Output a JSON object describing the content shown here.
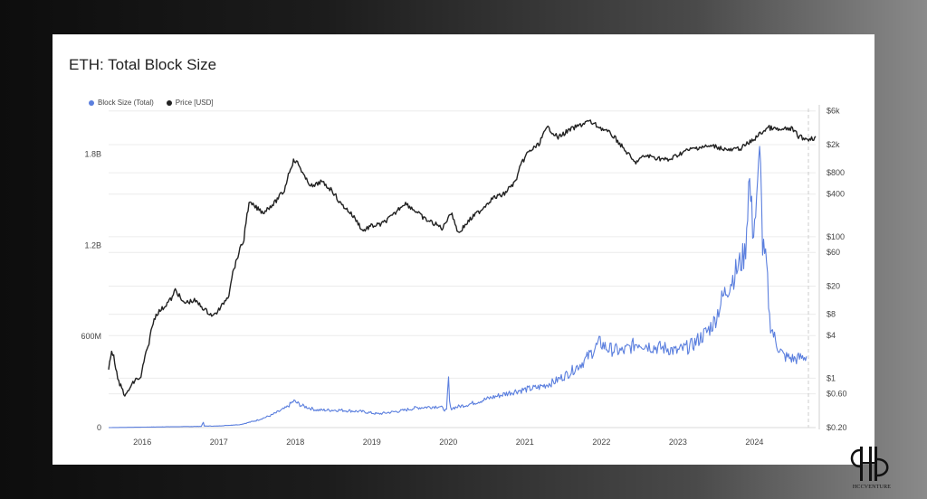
{
  "chart_data": {
    "type": "line",
    "title": "ETH: Total Block Size",
    "legend": {
      "placement": "top-left"
    },
    "grid": true,
    "x_ticks": [
      "2016",
      "2017",
      "2018",
      "2019",
      "2020",
      "2021",
      "2022",
      "2023",
      "2024"
    ],
    "x_range": [
      2015.58,
      2024.82
    ],
    "y_left": {
      "range": [
        0,
        2100000000
      ],
      "ticks": [
        {
          "value": 0,
          "label": "0"
        },
        {
          "value": 600000000,
          "label": "600M"
        },
        {
          "value": 1200000000,
          "label": "1.2B"
        },
        {
          "value": 1800000000,
          "label": "1.8B"
        }
      ]
    },
    "y_right": {
      "scale": "log",
      "range": [
        0.2,
        6500
      ],
      "ticks": [
        {
          "value": 6000,
          "label": "$6k"
        },
        {
          "value": 2000,
          "label": "$2k"
        },
        {
          "value": 800,
          "label": "$800"
        },
        {
          "value": 400,
          "label": "$400"
        },
        {
          "value": 100,
          "label": "$100"
        },
        {
          "value": 60,
          "label": "$60"
        },
        {
          "value": 20,
          "label": "$20"
        },
        {
          "value": 8,
          "label": "$8"
        },
        {
          "value": 4,
          "label": "$4"
        },
        {
          "value": 1,
          "label": "$1"
        },
        {
          "value": 0.6,
          "label": "$0.60"
        },
        {
          "value": 0.2,
          "label": "$0.20"
        }
      ]
    },
    "series": [
      {
        "name": "Block Size (Total)",
        "color": "#5b7fde",
        "axis": "left",
        "points": [
          [
            2015.58,
            0
          ],
          [
            2015.9,
            2000000
          ],
          [
            2016.2,
            4000000
          ],
          [
            2016.5,
            6000000
          ],
          [
            2016.8,
            8000000
          ],
          [
            2016.81,
            45000000
          ],
          [
            2016.83,
            10000000
          ],
          [
            2017.0,
            10000000
          ],
          [
            2017.3,
            20000000
          ],
          [
            2017.5,
            45000000
          ],
          [
            2017.7,
            80000000
          ],
          [
            2017.9,
            130000000
          ],
          [
            2018.0,
            175000000
          ],
          [
            2018.1,
            145000000
          ],
          [
            2018.3,
            115000000
          ],
          [
            2018.6,
            115000000
          ],
          [
            2018.9,
            105000000
          ],
          [
            2019.1,
            90000000
          ],
          [
            2019.4,
            110000000
          ],
          [
            2019.6,
            130000000
          ],
          [
            2019.9,
            140000000
          ],
          [
            2020.0,
            110000000
          ],
          [
            2020.02,
            350000000
          ],
          [
            2020.04,
            125000000
          ],
          [
            2020.3,
            155000000
          ],
          [
            2020.6,
            200000000
          ],
          [
            2020.9,
            240000000
          ],
          [
            2021.2,
            265000000
          ],
          [
            2021.4,
            300000000
          ],
          [
            2021.6,
            360000000
          ],
          [
            2021.8,
            440000000
          ],
          [
            2022.0,
            560000000
          ],
          [
            2022.1,
            520000000
          ],
          [
            2022.3,
            500000000
          ],
          [
            2022.5,
            560000000
          ],
          [
            2022.7,
            530000000
          ],
          [
            2022.9,
            520000000
          ],
          [
            2023.0,
            500000000
          ],
          [
            2023.2,
            540000000
          ],
          [
            2023.4,
            630000000
          ],
          [
            2023.5,
            700000000
          ],
          [
            2023.6,
            850000000
          ],
          [
            2023.8,
            1050000000
          ],
          [
            2023.9,
            1150000000
          ],
          [
            2023.95,
            1650000000
          ],
          [
            2024.0,
            1300000000
          ],
          [
            2024.05,
            1450000000
          ],
          [
            2024.1,
            1900000000
          ],
          [
            2024.12,
            1200000000
          ],
          [
            2024.18,
            1050000000
          ],
          [
            2024.22,
            700000000
          ],
          [
            2024.3,
            560000000
          ],
          [
            2024.4,
            470000000
          ],
          [
            2024.55,
            450000000
          ],
          [
            2024.7,
            470000000
          ]
        ]
      },
      {
        "name": "Price [USD]",
        "color": "#222222",
        "axis": "right",
        "points": [
          [
            2015.58,
            1.3
          ],
          [
            2015.62,
            2.5
          ],
          [
            2015.7,
            0.9
          ],
          [
            2015.8,
            0.55
          ],
          [
            2015.95,
            1.0
          ],
          [
            2016.0,
            0.95
          ],
          [
            2016.1,
            2.8
          ],
          [
            2016.2,
            8.0
          ],
          [
            2016.3,
            10.0
          ],
          [
            2016.42,
            14.0
          ],
          [
            2016.45,
            18.0
          ],
          [
            2016.55,
            11.5
          ],
          [
            2016.7,
            12.5
          ],
          [
            2016.85,
            9.0
          ],
          [
            2016.95,
            7.5
          ],
          [
            2017.05,
            10.0
          ],
          [
            2017.15,
            15.0
          ],
          [
            2017.25,
            45.0
          ],
          [
            2017.35,
            90.0
          ],
          [
            2017.42,
            300.0
          ],
          [
            2017.5,
            260.0
          ],
          [
            2017.6,
            220.0
          ],
          [
            2017.75,
            300.0
          ],
          [
            2017.88,
            450.0
          ],
          [
            2018.0,
            1200.0
          ],
          [
            2018.05,
            1100.0
          ],
          [
            2018.15,
            650.0
          ],
          [
            2018.25,
            500.0
          ],
          [
            2018.35,
            600.0
          ],
          [
            2018.5,
            450.0
          ],
          [
            2018.6,
            300.0
          ],
          [
            2018.75,
            210.0
          ],
          [
            2018.9,
            120.0
          ],
          [
            2019.0,
            140.0
          ],
          [
            2019.15,
            150.0
          ],
          [
            2019.3,
            200.0
          ],
          [
            2019.45,
            300.0
          ],
          [
            2019.55,
            250.0
          ],
          [
            2019.7,
            180.0
          ],
          [
            2019.85,
            150.0
          ],
          [
            2019.95,
            130.0
          ],
          [
            2020.05,
            220.0
          ],
          [
            2020.15,
            110.0
          ],
          [
            2020.25,
            150.0
          ],
          [
            2020.45,
            240.0
          ],
          [
            2020.6,
            350.0
          ],
          [
            2020.75,
            400.0
          ],
          [
            2020.9,
            600.0
          ],
          [
            2021.05,
            1500.0
          ],
          [
            2021.2,
            2000.0
          ],
          [
            2021.32,
            3500.0
          ],
          [
            2021.45,
            2500.0
          ],
          [
            2021.6,
            3200.0
          ],
          [
            2021.75,
            3800.0
          ],
          [
            2021.85,
            4300.0
          ],
          [
            2022.0,
            3500.0
          ],
          [
            2022.15,
            2800.0
          ],
          [
            2022.3,
            1800.0
          ],
          [
            2022.45,
            1100.0
          ],
          [
            2022.6,
            1400.0
          ],
          [
            2022.75,
            1300.0
          ],
          [
            2022.9,
            1200.0
          ],
          [
            2023.1,
            1600.0
          ],
          [
            2023.3,
            1850.0
          ],
          [
            2023.5,
            1900.0
          ],
          [
            2023.7,
            1650.0
          ],
          [
            2023.85,
            1800.0
          ],
          [
            2024.0,
            2300.0
          ],
          [
            2024.12,
            3000.0
          ],
          [
            2024.2,
            3500.0
          ],
          [
            2024.35,
            3200.0
          ],
          [
            2024.5,
            3400.0
          ],
          [
            2024.6,
            2600.0
          ],
          [
            2024.7,
            2400.0
          ],
          [
            2024.82,
            2500.0
          ]
        ]
      }
    ]
  },
  "logo": {
    "label": "HCCVENTURE"
  }
}
